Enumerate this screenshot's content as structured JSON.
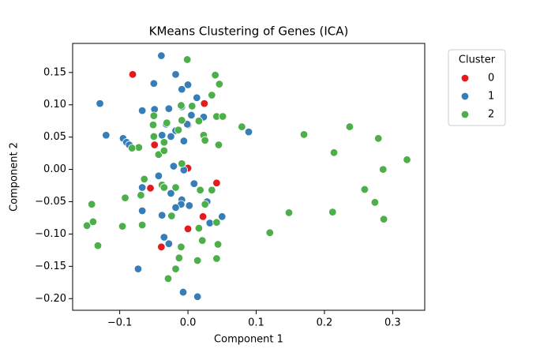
{
  "chart_data": {
    "type": "scatter",
    "title": "KMeans Clustering of Genes (ICA)",
    "x_label": "Component 1",
    "y_label": "Component 2",
    "legend_title": "Cluster",
    "legend_position": "outside upper right",
    "xlim": [
      -0.169,
      0.347
    ],
    "ylim": [
      -0.218,
      0.195
    ],
    "xticks": [
      {
        "value": -0.1,
        "label": "−0.1"
      },
      {
        "value": 0,
        "label": "0.0"
      },
      0.1,
      0.2,
      0.3
    ],
    "yticks": [
      {
        "value": -0.2,
        "label": "−0.20"
      },
      {
        "value": -0.15,
        "label": "−0.15"
      },
      {
        "value": -0.1,
        "label": "−0.10"
      },
      {
        "value": -0.05,
        "label": "−0.05"
      },
      {
        "value": 0,
        "label": "0.00"
      },
      {
        "value": 0.05,
        "label": "0.05"
      },
      {
        "value": 0.1,
        "label": "0.10"
      },
      0.15
    ],
    "series": [
      {
        "name": "0",
        "color": "#e41a1c",
        "x": [
          -0.081,
          0.024,
          0.0,
          -0.049,
          0.0,
          -0.055,
          0.042,
          0.022,
          -0.039,
          0.0
        ],
        "y": [
          0.147,
          0.102,
          0.069,
          0.038,
          0.002,
          -0.029,
          -0.021,
          -0.073,
          -0.12,
          -0.092
        ]
      },
      {
        "name": "1",
        "color": "#377eb8",
        "x": [
          -0.039,
          -0.129,
          -0.05,
          -0.018,
          0.0,
          -0.009,
          0.013,
          -0.067,
          -0.049,
          -0.028,
          -0.009,
          0.005,
          0.023,
          -0.032,
          -0.018,
          -0.001,
          -0.12,
          -0.095,
          -0.09,
          -0.086,
          -0.038,
          -0.025,
          -0.006,
          0.089,
          -0.021,
          -0.006,
          -0.043,
          -0.067,
          -0.025,
          0.009,
          -0.009,
          0.028,
          0.002,
          -0.01,
          0.05,
          -0.067,
          -0.038,
          -0.018,
          -0.035,
          0.032,
          -0.028,
          -0.073,
          -0.007,
          0.014
        ],
        "y": [
          0.176,
          0.102,
          0.133,
          0.147,
          0.131,
          0.124,
          0.111,
          0.091,
          0.093,
          0.094,
          0.097,
          0.084,
          0.081,
          0.07,
          0.06,
          0.07,
          0.053,
          0.048,
          0.042,
          0.038,
          0.053,
          0.051,
          0.044,
          0.058,
          0.005,
          -0.001,
          -0.01,
          -0.028,
          -0.037,
          -0.022,
          -0.047,
          -0.05,
          -0.056,
          -0.054,
          -0.073,
          -0.064,
          -0.071,
          -0.059,
          -0.105,
          -0.083,
          -0.115,
          -0.154,
          -0.19,
          -0.197
        ]
      },
      {
        "name": "2",
        "color": "#4daf4a",
        "x": [
          -0.001,
          0.04,
          0.046,
          0.035,
          0.006,
          -0.01,
          -0.05,
          -0.031,
          0.016,
          0.042,
          0.051,
          0.079,
          -0.051,
          -0.009,
          -0.014,
          -0.05,
          -0.035,
          -0.072,
          -0.082,
          0.023,
          0.025,
          0.045,
          -0.043,
          -0.035,
          -0.009,
          -0.064,
          -0.038,
          0.018,
          0.035,
          -0.092,
          -0.141,
          -0.069,
          -0.018,
          -0.035,
          0.025,
          -0.024,
          -0.067,
          -0.148,
          -0.139,
          -0.132,
          -0.096,
          0.016,
          0.042,
          0.021,
          -0.01,
          0.044,
          -0.013,
          0.014,
          0.042,
          -0.018,
          -0.029,
          0.17,
          0.237,
          0.214,
          0.279,
          0.286,
          0.259,
          0.274,
          0.212,
          0.287,
          0.321,
          0.148,
          0.12
        ],
        "y": [
          0.17,
          0.146,
          0.132,
          0.115,
          0.098,
          0.099,
          0.083,
          0.072,
          0.075,
          0.082,
          0.082,
          0.066,
          0.069,
          0.076,
          0.061,
          0.051,
          0.042,
          0.034,
          0.033,
          0.053,
          0.045,
          0.038,
          0.023,
          0.029,
          0.009,
          -0.015,
          -0.024,
          -0.032,
          -0.032,
          -0.044,
          -0.054,
          -0.04,
          -0.028,
          -0.028,
          -0.054,
          -0.072,
          -0.086,
          -0.087,
          -0.081,
          -0.118,
          -0.088,
          -0.091,
          -0.082,
          -0.11,
          -0.12,
          -0.116,
          -0.137,
          -0.141,
          -0.138,
          -0.154,
          -0.169,
          0.054,
          0.066,
          0.026,
          0.048,
          0.0,
          -0.031,
          -0.051,
          -0.066,
          -0.077,
          0.015,
          -0.067,
          -0.098
        ]
      }
    ]
  }
}
